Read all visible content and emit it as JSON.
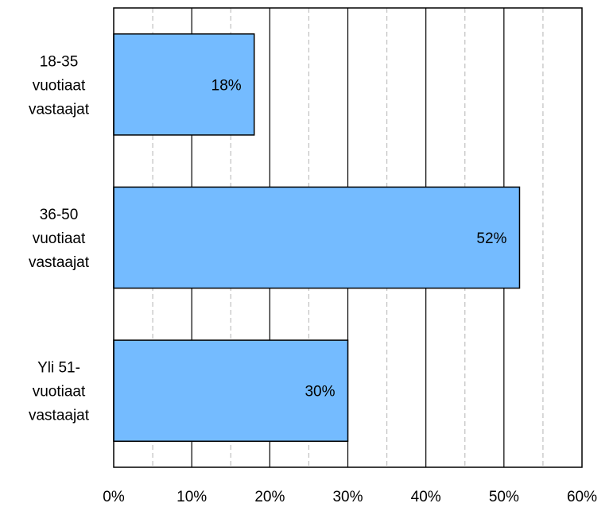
{
  "chart_data": {
    "type": "bar",
    "orientation": "horizontal",
    "title": "",
    "xlabel": "",
    "ylabel": "",
    "categories": [
      [
        "18-35",
        "vuotiaat",
        "vastaajat"
      ],
      [
        "36-50",
        "vuotiaat",
        "vastaajat"
      ],
      [
        "Yli 51-",
        "vuotiaat",
        "vastaajat"
      ]
    ],
    "values": [
      18,
      52,
      30
    ],
    "data_labels": [
      "18%",
      "52%",
      "30%"
    ],
    "xlim": [
      0,
      60
    ],
    "x_ticks": [
      0,
      10,
      20,
      30,
      40,
      50,
      60
    ],
    "x_tick_labels": [
      "0%",
      "10%",
      "20%",
      "30%",
      "40%",
      "50%",
      "60%"
    ],
    "grid": {
      "major": "solid",
      "minor": "dashed",
      "minor_step": 5
    },
    "legend": "none",
    "colors": {
      "bar_fill": "#74BBFF",
      "bar_stroke": "#000000",
      "grid_major": "#000000",
      "grid_minor": "#C0C0C0"
    }
  }
}
